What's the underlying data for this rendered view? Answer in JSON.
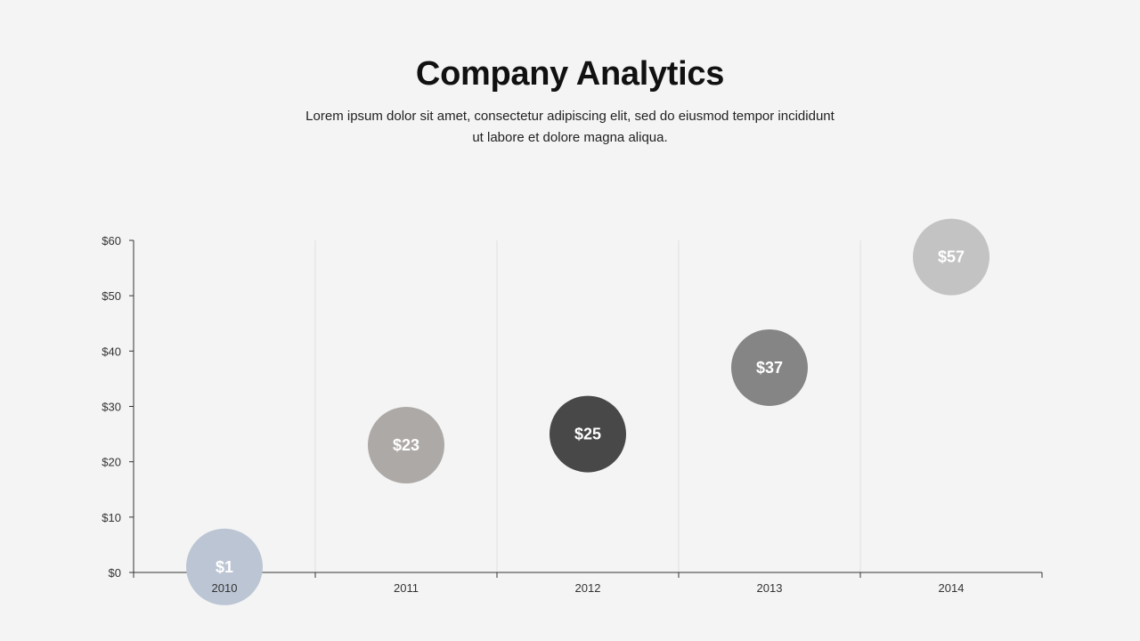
{
  "slide": {
    "title": "Company Analytics",
    "subtitle": "Lorem ipsum dolor sit amet, consectetur adipiscing elit, sed do eiusmod tempor incididunt ut labore et dolore magna aliqua."
  },
  "chart_data": {
    "type": "scatter",
    "title": "",
    "xlabel": "",
    "ylabel": "",
    "categories": [
      "2010",
      "2011",
      "2012",
      "2013",
      "2014"
    ],
    "values": [
      1,
      23,
      25,
      37,
      57
    ],
    "labels": [
      "$1",
      "$23",
      "$25",
      "$37",
      "$57"
    ],
    "colors": [
      "#bcc5d4",
      "#ada9a7",
      "#484848",
      "#858585",
      "#c3c3c3"
    ],
    "y_ticks": [
      "$0",
      "$10",
      "$20",
      "$30",
      "$40",
      "$50",
      "$60"
    ],
    "ylim": [
      0,
      60
    ],
    "grid": "vertical",
    "axis_color": "#333333",
    "grid_color": "#e0e0e0"
  }
}
